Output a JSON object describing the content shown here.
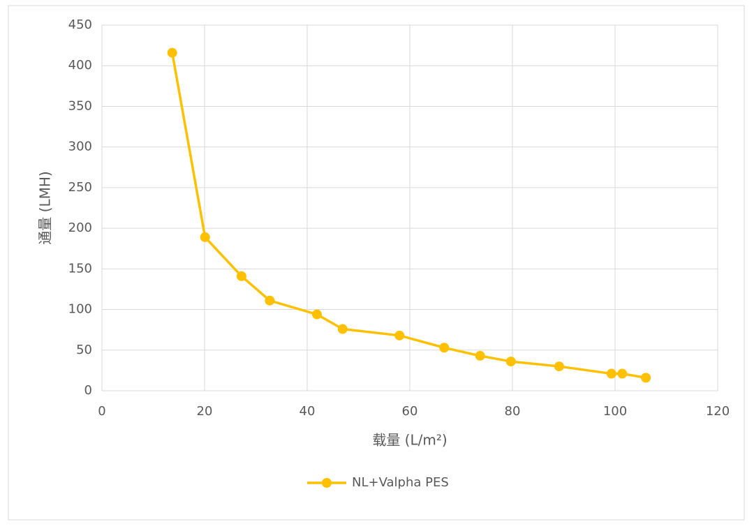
{
  "chart_data": {
    "type": "line",
    "x_label": "载量 (L/m²)",
    "y_label": "通量 (LMH)",
    "x": [
      13.7,
      20.1,
      27.2,
      32.7,
      41.9,
      46.9,
      58.0,
      66.7,
      73.7,
      79.7,
      89.1,
      99.3,
      101.4,
      106.0
    ],
    "series": [
      {
        "name": "NL+Valpha PES",
        "color": "#ffc000",
        "values": [
          416,
          189,
          141,
          111,
          94,
          76,
          68,
          53,
          43,
          36,
          30,
          21,
          21,
          16
        ]
      }
    ],
    "xlim": [
      0,
      120
    ],
    "xticks": [
      0,
      20,
      40,
      60,
      80,
      100,
      120
    ],
    "ylim": [
      0,
      450
    ],
    "yticks": [
      0,
      50,
      100,
      150,
      200,
      250,
      300,
      350,
      400,
      450
    ],
    "grid": true,
    "legend": "bottom"
  }
}
